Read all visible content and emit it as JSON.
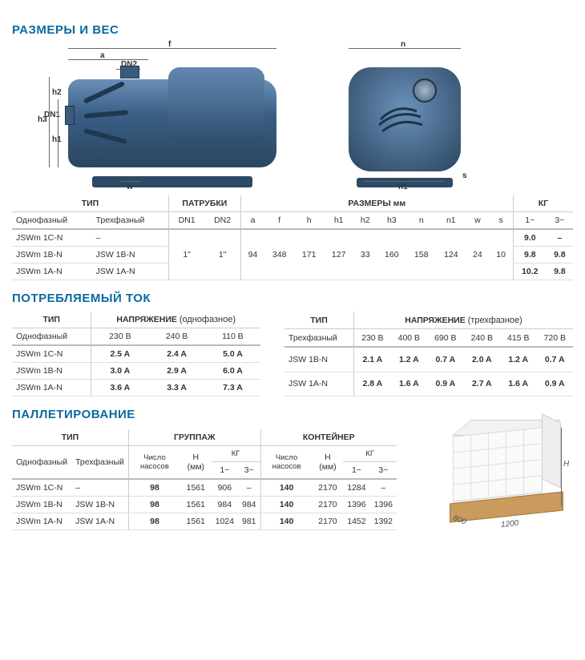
{
  "colors": {
    "heading": "#0a6aa1",
    "pump_light": "#6b8fb8",
    "pump_dark": "#2a4560",
    "wood": "#c99b5d"
  },
  "sec1": {
    "title": "РАЗМЕРЫ И ВЕС",
    "diagram_labels": {
      "f": "f",
      "a": "a",
      "DN2": "DN2",
      "DN1": "DN1",
      "h3": "h3",
      "h1": "h1",
      "h2": "h2",
      "w": "w",
      "n": "n",
      "n1": "n1",
      "s": "s"
    },
    "cols_top": {
      "type": "ТИП",
      "ports": "ПАТРУБКИ",
      "dims": "РАЗМЕРЫ мм",
      "kg": "КГ"
    },
    "cols": {
      "mono": "Однофазный",
      "tri": "Трехфазный",
      "dn1": "DN1",
      "dn2": "DN2",
      "a": "a",
      "f": "f",
      "h": "h",
      "h1": "h1",
      "h2": "h2",
      "h3": "h3",
      "n": "n",
      "n1": "n1",
      "w": "w",
      "s": "s",
      "kg1": "1~",
      "kg3": "3~"
    },
    "shared": {
      "dn1": "1\"",
      "dn2": "1\"",
      "a": "94",
      "f": "348",
      "h": "171",
      "h1": "127",
      "h2": "33",
      "h3": "160",
      "n": "158",
      "n1": "124",
      "w": "24",
      "s": "10"
    },
    "rows": [
      {
        "mono": "JSWm 1C-N",
        "tri": "–",
        "kg1": "9.0",
        "kg3": "–"
      },
      {
        "mono": "JSWm 1B-N",
        "tri": "JSW 1B-N",
        "kg1": "9.8",
        "kg3": "9.8"
      },
      {
        "mono": "JSWm 1A-N",
        "tri": "JSW 1A-N",
        "kg1": "10.2",
        "kg3": "9.8"
      }
    ]
  },
  "sec2": {
    "title": "ПОТРЕБЛЯЕМЫЙ ТОК",
    "t1": {
      "h_type": "ТИП",
      "h_volt": "НАПРЯЖЕНИЕ",
      "h_volt_note": "(однофазное)",
      "sub": "Однофазный",
      "v": [
        "230 В",
        "240 В",
        "110 В"
      ],
      "rows": [
        {
          "m": "JSWm 1C-N",
          "v": [
            "2.5 A",
            "2.4 A",
            "5.0 A"
          ]
        },
        {
          "m": "JSWm 1B-N",
          "v": [
            "3.0 A",
            "2.9 A",
            "6.0 A"
          ]
        },
        {
          "m": "JSWm 1A-N",
          "v": [
            "3.6 A",
            "3.3 A",
            "7.3 A"
          ]
        }
      ]
    },
    "t2": {
      "h_type": "ТИП",
      "h_volt": "НАПРЯЖЕНИЕ",
      "h_volt_note": "(трехфазное)",
      "sub": "Трехфазный",
      "v": [
        "230 В",
        "400 В",
        "690 В",
        "240 В",
        "415 В",
        "720 В"
      ],
      "rows": [
        {
          "m": "JSW 1B-N",
          "v": [
            "2.1 A",
            "1.2 A",
            "0.7 A",
            "2.0 A",
            "1.2 A",
            "0.7 A"
          ]
        },
        {
          "m": "JSW 1A-N",
          "v": [
            "2.8 A",
            "1.6 A",
            "0.9 A",
            "2.7 A",
            "1.6 A",
            "0.9 A"
          ]
        }
      ]
    }
  },
  "sec3": {
    "title": "ПАЛЛЕТИРОВАНИЕ",
    "cols_top": {
      "type": "ТИП",
      "grp": "ГРУППАЖ",
      "cnt": "КОНТЕЙНЕР"
    },
    "cols": {
      "mono": "Однофазный",
      "tri": "Трехфазный",
      "num": "Число насосов",
      "h": "H (мм)",
      "kg": "КГ",
      "kg1": "1~",
      "kg3": "3~"
    },
    "rows": [
      {
        "mono": "JSWm 1C-N",
        "tri": "–",
        "gn": "98",
        "gh": "1561",
        "gk1": "906",
        "gk3": "–",
        "cn": "140",
        "ch": "2170",
        "ck1": "1284",
        "ck3": "–"
      },
      {
        "mono": "JSWm 1B-N",
        "tri": "JSW 1B-N",
        "gn": "98",
        "gh": "1561",
        "gk1": "984",
        "gk3": "984",
        "cn": "140",
        "ch": "2170",
        "ck1": "1396",
        "ck3": "1396"
      },
      {
        "mono": "JSWm 1A-N",
        "tri": "JSW 1A-N",
        "gn": "98",
        "gh": "1561",
        "gk1": "1024",
        "gk3": "981",
        "cn": "140",
        "ch": "2170",
        "ck1": "1452",
        "ck3": "1392"
      }
    ],
    "pallet": {
      "d1": "800",
      "d2": "1200",
      "h": "H"
    }
  }
}
